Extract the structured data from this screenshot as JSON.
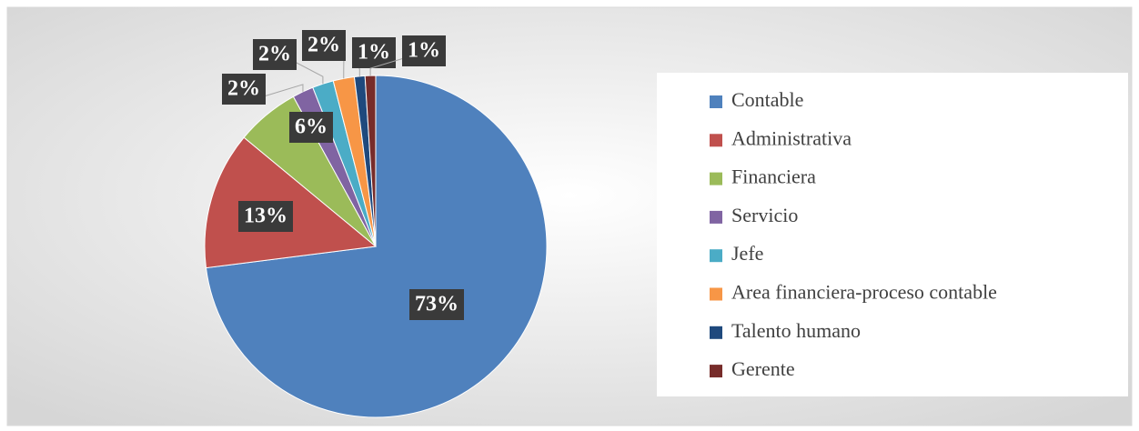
{
  "chart_data": {
    "type": "pie",
    "categories": [
      "Contable",
      "Administrativa",
      "Financiera",
      "Servicio",
      "Jefe",
      "Area financiera-proceso contable",
      "Talento humano",
      "Gerente"
    ],
    "values": [
      73,
      13,
      6,
      2,
      2,
      2,
      1,
      1
    ],
    "value_labels": [
      "73%",
      "13%",
      "6%",
      "2%",
      "2%",
      "2%",
      "1%",
      "1%"
    ],
    "colors": [
      "#4f81bd",
      "#c0504d",
      "#9bbb59",
      "#8064a2",
      "#4bacc6",
      "#f79646",
      "#1f497d",
      "#772c2a"
    ],
    "legend": "right"
  }
}
